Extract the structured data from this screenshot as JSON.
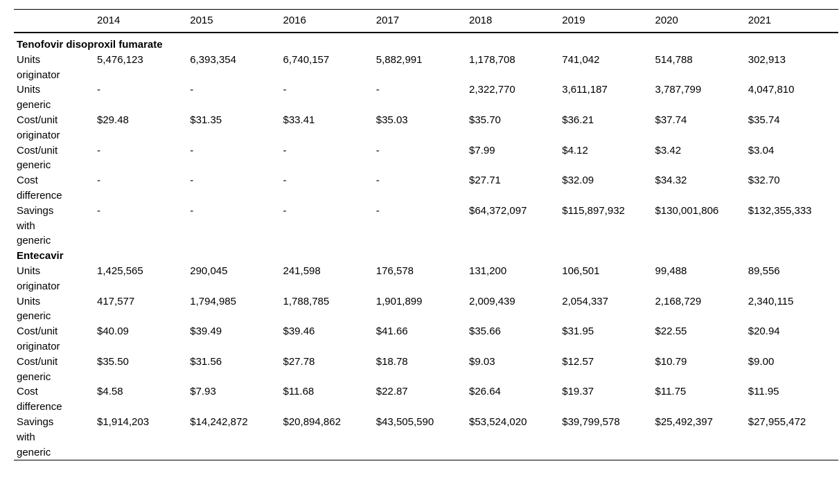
{
  "table": {
    "years": [
      "2014",
      "2015",
      "2016",
      "2017",
      "2018",
      "2019",
      "2020",
      "2021"
    ],
    "text_color": "#000000",
    "background_color": "#ffffff",
    "sections": [
      {
        "name": "Tenofovir disoproxil fumarate",
        "rows": [
          {
            "label": "Units originator",
            "values": [
              "5,476,123",
              "6,393,354",
              "6,740,157",
              "5,882,991",
              "1,178,708",
              "741,042",
              "514,788",
              "302,913"
            ]
          },
          {
            "label": "Units generic",
            "values": [
              "-",
              "-",
              "-",
              "-",
              "2,322,770",
              "3,611,187",
              "3,787,799",
              "4,047,810"
            ]
          },
          {
            "label": "Cost/unit originator",
            "values": [
              "$29.48",
              "$31.35",
              "$33.41",
              "$35.03",
              "$35.70",
              "$36.21",
              "$37.74",
              "$35.74"
            ]
          },
          {
            "label": "Cost/unit generic",
            "values": [
              "-",
              "-",
              "-",
              "-",
              "$7.99",
              "$4.12",
              "$3.42",
              "$3.04"
            ]
          },
          {
            "label": "Cost difference",
            "values": [
              "-",
              "-",
              "-",
              "-",
              "$27.71",
              "$32.09",
              "$34.32",
              "$32.70"
            ]
          },
          {
            "label": "Savings with generic",
            "values": [
              "-",
              "-",
              "-",
              "-",
              "$64,372,097",
              "$115,897,932",
              "$130,001,806",
              "$132,355,333"
            ]
          }
        ]
      },
      {
        "name": "Entecavir",
        "rows": [
          {
            "label": "Units originator",
            "values": [
              "1,425,565",
              "290,045",
              "241,598",
              "176,578",
              "131,200",
              "106,501",
              "99,488",
              "89,556"
            ]
          },
          {
            "label": "Units generic",
            "values": [
              "417,577",
              "1,794,985",
              "1,788,785",
              "1,901,899",
              "2,009,439",
              "2,054,337",
              "2,168,729",
              "2,340,115"
            ]
          },
          {
            "label": "Cost/unit originator",
            "values": [
              "$40.09",
              "$39.49",
              "$39.46",
              "$41.66",
              "$35.66",
              "$31.95",
              "$22.55",
              "$20.94"
            ]
          },
          {
            "label": "Cost/unit generic",
            "values": [
              "$35.50",
              "$31.56",
              "$27.78",
              "$18.78",
              "$9.03",
              "$12.57",
              "$10.79",
              "$9.00"
            ]
          },
          {
            "label": "Cost difference",
            "values": [
              "$4.58",
              "$7.93",
              "$11.68",
              "$22.87",
              "$26.64",
              "$19.37",
              "$11.75",
              "$11.95"
            ]
          },
          {
            "label": "Savings with generic",
            "values": [
              "$1,914,203",
              "$14,242,872",
              "$20,894,862",
              "$43,505,590",
              "$53,524,020",
              "$39,799,578",
              "$25,492,397",
              "$27,955,472"
            ]
          }
        ]
      }
    ]
  }
}
